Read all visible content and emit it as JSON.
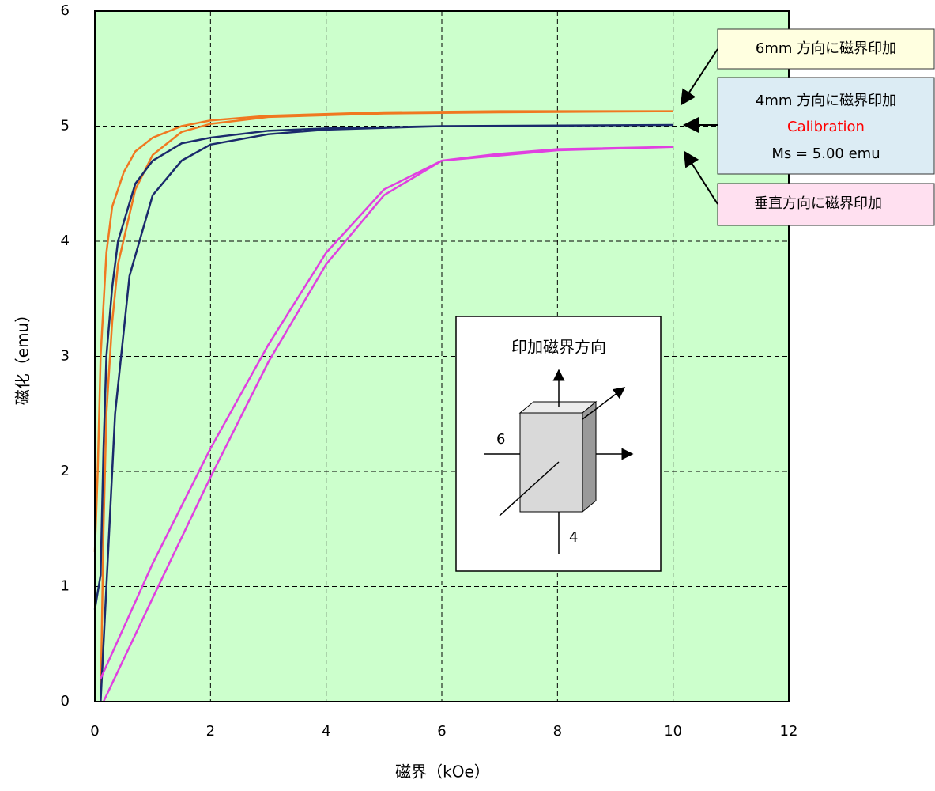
{
  "chart_data": {
    "type": "line",
    "x_label": "磁界（kOe）",
    "y_label": "磁化（emu）",
    "xlim": [
      0,
      12
    ],
    "ylim": [
      0,
      6
    ],
    "xticks": [
      0,
      2,
      4,
      6,
      8,
      10,
      12
    ],
    "yticks": [
      0,
      1,
      2,
      3,
      4,
      5,
      6
    ],
    "grid": true,
    "plot_background": "#ccffcc",
    "series": [
      {
        "name": "6mm 方向に磁界印加",
        "color": "#f07820",
        "x": [
          0,
          0.05,
          0.1,
          0.2,
          0.3,
          0.5,
          0.7,
          1,
          1.5,
          2,
          3,
          5,
          7,
          10,
          null,
          0.1,
          0.15,
          0.2,
          0.3,
          0.4,
          0.7,
          1,
          1.5,
          2,
          3,
          5,
          7,
          10
        ],
        "values": [
          1.3,
          2.0,
          3.0,
          3.9,
          4.3,
          4.6,
          4.78,
          4.9,
          5.0,
          5.05,
          5.09,
          5.12,
          5.13,
          5.13,
          null,
          0,
          1.5,
          2.5,
          3.3,
          3.8,
          4.45,
          4.75,
          4.95,
          5.02,
          5.08,
          5.11,
          5.12,
          5.13
        ]
      },
      {
        "name": "4mm 方向に磁界印加",
        "color": "#1a2a6c",
        "x": [
          0,
          0.1,
          0.15,
          0.2,
          0.3,
          0.4,
          0.7,
          1,
          1.5,
          2,
          3,
          4,
          6,
          10,
          null,
          0.1,
          0.2,
          0.35,
          0.6,
          1,
          1.5,
          2,
          3,
          4,
          6,
          10
        ],
        "values": [
          0.8,
          1.1,
          2.2,
          3.0,
          3.6,
          4.0,
          4.5,
          4.7,
          4.85,
          4.9,
          4.96,
          4.98,
          5.0,
          5.01,
          null,
          0,
          1.0,
          2.5,
          3.7,
          4.4,
          4.7,
          4.84,
          4.93,
          4.97,
          5.0,
          5.01
        ]
      },
      {
        "name": "垂直方向に磁界印加",
        "color": "#e040e0",
        "x": [
          0.1,
          1,
          2,
          3,
          4,
          5,
          6,
          7,
          8,
          10,
          null,
          0.15,
          1,
          2,
          3,
          4,
          5,
          6,
          8,
          10
        ],
        "values": [
          0.2,
          1.2,
          2.2,
          3.1,
          3.9,
          4.45,
          4.7,
          4.76,
          4.8,
          4.82,
          null,
          0,
          0.9,
          1.95,
          2.95,
          3.8,
          4.4,
          4.7,
          4.79,
          4.82
        ]
      }
    ],
    "annotations": [
      "Calibration",
      "Ms = 5.00 emu"
    ],
    "inset": {
      "title": "印加磁界方向",
      "labels": [
        "6",
        "4"
      ]
    }
  }
}
